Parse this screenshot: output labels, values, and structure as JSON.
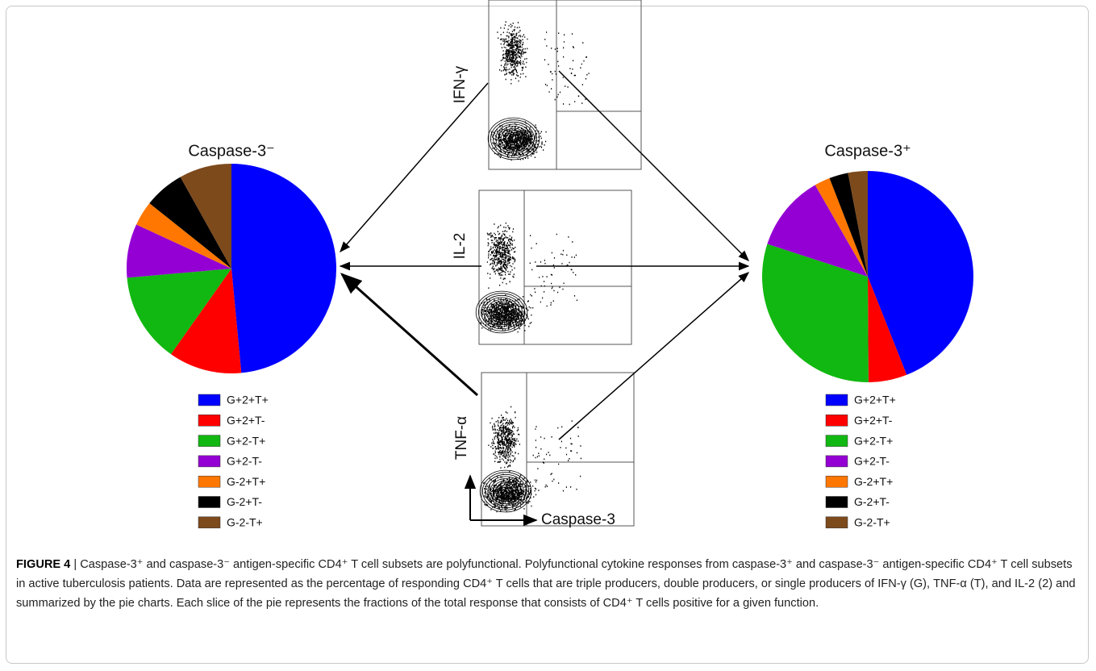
{
  "chart_data": [
    {
      "type": "pie",
      "title": "Caspase-3⁻",
      "categories": [
        "G+2+T+",
        "G+2+T-",
        "G+2-T+",
        "G+2-T-",
        "G-2+T+",
        "G-2+T-",
        "G-2-T+"
      ],
      "values": [
        48.5,
        11.3,
        13.8,
        8.3,
        3.8,
        6.2,
        8.1
      ],
      "colors": [
        "#0000ff",
        "#ff0000",
        "#11b811",
        "#9400d3",
        "#ff7700",
        "#000000",
        "#7d4a1c"
      ]
    },
    {
      "type": "pie",
      "title": "Caspase-3⁺",
      "categories": [
        "G+2+T+",
        "G+2+T-",
        "G+2-T+",
        "G+2-T-",
        "G-2+T+",
        "G-2+T-",
        "G-2-T+"
      ],
      "values": [
        44.0,
        5.9,
        30.1,
        11.7,
        2.4,
        2.9,
        3.0
      ],
      "colors": [
        "#0000ff",
        "#ff0000",
        "#11b811",
        "#9400d3",
        "#ff7700",
        "#000000",
        "#7d4a1c"
      ]
    }
  ],
  "flow": {
    "y_labels": [
      "IFN-γ",
      "IL-2",
      "TNF-α"
    ],
    "x_label": "Caspase-3"
  },
  "caption": {
    "label": "FIGURE 4",
    "text": "| Caspase-3⁺ and caspase-3⁻ antigen-specific CD4⁺ T cell subsets are polyfunctional. Polyfunctional cytokine responses from caspase-3⁺ and caspase-3⁻ antigen-specific CD4⁺ T cell subsets in active tuberculosis patients. Data are represented as the percentage of responding CD4⁺ T cells that are triple producers, double producers, or single producers of IFN-γ (G), TNF-α (T), and IL-2 (2) and summarized by the pie charts. Each slice of the pie represents the fractions of the total response that consists of CD4⁺ T cells positive for a given function."
  }
}
